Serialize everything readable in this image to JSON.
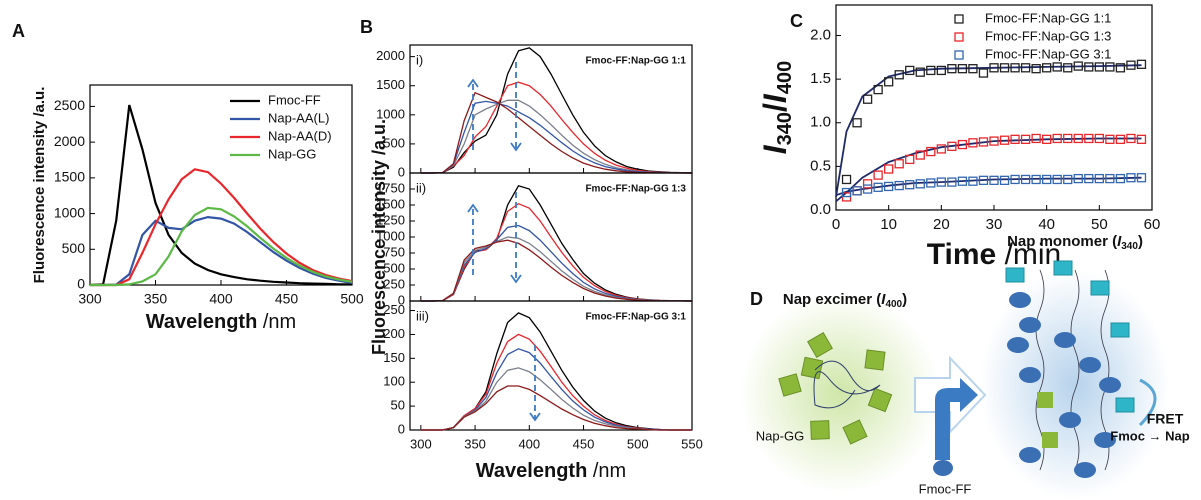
{
  "chart_data": [
    {
      "type": "line",
      "panel": "A",
      "y_label": "Fluorescence intensity /a.u.",
      "x_label": [
        "Wavelength",
        " /nm"
      ],
      "x": [
        300,
        310,
        320,
        330,
        340,
        350,
        360,
        370,
        380,
        390,
        400,
        410,
        420,
        430,
        440,
        450,
        460,
        470,
        480,
        490,
        500
      ],
      "xlim": [
        300,
        500
      ],
      "xticks": [
        300,
        350,
        400,
        450,
        500
      ],
      "ylim": [
        0,
        2800
      ],
      "yticks": [
        0,
        500,
        1000,
        1500,
        2000,
        2500
      ],
      "legend": "upper right",
      "series": [
        {
          "name": "Fmoc-FF",
          "color": "#000000",
          "values": [
            0,
            10,
            900,
            2520,
            1900,
            1150,
            700,
            450,
            300,
            210,
            150,
            110,
            80,
            60,
            45,
            35,
            25,
            20,
            15,
            10,
            8
          ]
        },
        {
          "name": "Nap-AA(L)",
          "color": "#3355a5",
          "values": [
            0,
            0,
            5,
            150,
            700,
            900,
            800,
            780,
            900,
            950,
            930,
            860,
            740,
            600,
            460,
            340,
            240,
            160,
            100,
            60,
            30
          ]
        },
        {
          "name": "Nap-AA(D)",
          "color": "#e8262b",
          "values": [
            0,
            0,
            0,
            80,
            450,
            850,
            1200,
            1480,
            1620,
            1580,
            1420,
            1220,
            1000,
            790,
            600,
            440,
            310,
            210,
            140,
            90,
            55
          ]
        },
        {
          "name": "Nap-GG",
          "color": "#5cb946",
          "values": [
            0,
            0,
            0,
            10,
            50,
            150,
            400,
            750,
            980,
            1080,
            1060,
            960,
            820,
            660,
            510,
            380,
            270,
            185,
            120,
            75,
            45
          ]
        }
      ]
    },
    {
      "type": "line",
      "panel": "B",
      "roman": "i)",
      "ratio_label": "Fmoc-FF:Nap-GG 1:1",
      "x": [
        300,
        310,
        320,
        330,
        340,
        350,
        360,
        370,
        380,
        390,
        400,
        410,
        420,
        430,
        440,
        450,
        460,
        470,
        480,
        490,
        500,
        510,
        520,
        530,
        540,
        550
      ],
      "xlim": [
        290,
        550
      ],
      "ylim": [
        0,
        2200
      ],
      "yticks": [
        0,
        500,
        1000,
        1500,
        2000
      ],
      "series": [
        {
          "color": "#000000",
          "values": [
            0,
            0,
            5,
            100,
            350,
            550,
            650,
            1000,
            1700,
            2100,
            2150,
            2000,
            1700,
            1350,
            1000,
            700,
            470,
            300,
            190,
            110,
            65,
            35,
            20,
            10,
            5,
            0
          ]
        },
        {
          "color": "#e8262b",
          "values": [
            0,
            0,
            5,
            120,
            300,
            620,
            800,
            1150,
            1500,
            1560,
            1500,
            1350,
            1150,
            920,
            700,
            500,
            340,
            220,
            135,
            80,
            45,
            25,
            12,
            6,
            3,
            0
          ]
        },
        {
          "color": "#7b7f8c",
          "values": [
            0,
            0,
            5,
            130,
            500,
            1000,
            1100,
            1180,
            1250,
            1250,
            1150,
            1000,
            830,
            650,
            480,
            340,
            230,
            150,
            90,
            55,
            30,
            16,
            8,
            4,
            2,
            0
          ]
        },
        {
          "color": "#3355a5",
          "values": [
            0,
            0,
            5,
            150,
            700,
            1200,
            1230,
            1200,
            1150,
            1050,
            950,
            820,
            670,
            520,
            380,
            265,
            175,
            110,
            68,
            40,
            22,
            12,
            6,
            3,
            1,
            0
          ]
        },
        {
          "color": "#8b1a1a",
          "values": [
            0,
            0,
            5,
            160,
            900,
            1380,
            1300,
            1220,
            1100,
            950,
            800,
            650,
            500,
            370,
            260,
            170,
            110,
            65,
            38,
            20,
            10,
            5,
            2,
            1,
            0,
            0
          ]
        }
      ]
    },
    {
      "type": "line",
      "panel_y_label": "Fluorescence intensity /a.u.",
      "roman": "ii)",
      "ratio_label": "Fmoc-FF:Nap-GG 1:3",
      "x": [
        300,
        310,
        320,
        330,
        340,
        350,
        360,
        370,
        380,
        390,
        400,
        410,
        420,
        430,
        440,
        450,
        460,
        470,
        480,
        490,
        500,
        510,
        520,
        530,
        540,
        550
      ],
      "xlim": [
        290,
        550
      ],
      "ylim": [
        0,
        2000
      ],
      "yticks": [
        0,
        250,
        500,
        750,
        1000,
        1250,
        1500,
        1750
      ],
      "series": [
        {
          "color": "#000000",
          "values": [
            0,
            0,
            5,
            100,
            500,
            780,
            800,
            950,
            1500,
            1800,
            1750,
            1500,
            1200,
            900,
            650,
            430,
            280,
            175,
            105,
            60,
            33,
            18,
            9,
            4,
            2,
            0
          ]
        },
        {
          "color": "#e8262b",
          "values": [
            0,
            0,
            5,
            100,
            520,
            770,
            800,
            980,
            1400,
            1520,
            1450,
            1250,
            1000,
            760,
            550,
            370,
            240,
            150,
            90,
            52,
            28,
            15,
            8,
            4,
            2,
            0
          ]
        },
        {
          "color": "#3355a5",
          "values": [
            0,
            0,
            5,
            110,
            560,
            760,
            820,
            960,
            1150,
            1180,
            1100,
            950,
            770,
            590,
            430,
            290,
            190,
            120,
            72,
            42,
            23,
            12,
            6,
            3,
            1,
            0
          ]
        },
        {
          "color": "#7b7f8c",
          "values": [
            0,
            0,
            5,
            115,
            600,
            790,
            840,
            930,
            1000,
            980,
            900,
            770,
            620,
            470,
            340,
            230,
            150,
            95,
            57,
            33,
            18,
            10,
            5,
            2,
            1,
            0
          ]
        },
        {
          "color": "#8b1a1a",
          "values": [
            0,
            0,
            5,
            120,
            640,
            820,
            860,
            920,
            950,
            900,
            800,
            670,
            530,
            400,
            290,
            195,
            125,
            78,
            46,
            26,
            14,
            7,
            3,
            2,
            1,
            0
          ]
        }
      ]
    },
    {
      "type": "line",
      "roman": "iii)",
      "ratio_label": "Fmoc-FF:Nap-GG 3:1",
      "x_label": [
        "Wavelength",
        " /nm"
      ],
      "x": [
        300,
        310,
        320,
        330,
        340,
        350,
        360,
        370,
        380,
        390,
        400,
        410,
        420,
        430,
        440,
        450,
        460,
        470,
        480,
        490,
        500,
        510,
        520,
        530,
        540,
        550
      ],
      "xlim": [
        290,
        550
      ],
      "xticks": [
        300,
        350,
        400,
        450,
        500,
        550
      ],
      "ylim": [
        0,
        270
      ],
      "yticks": [
        0,
        50,
        100,
        150,
        200,
        250
      ],
      "series": [
        {
          "color": "#000000",
          "values": [
            0,
            0,
            0,
            5,
            30,
            45,
            80,
            160,
            225,
            245,
            235,
            205,
            165,
            125,
            90,
            62,
            40,
            25,
            15,
            9,
            5,
            3,
            1,
            0,
            0,
            0
          ]
        },
        {
          "color": "#e8262b",
          "values": [
            0,
            0,
            0,
            5,
            30,
            45,
            75,
            140,
            185,
            200,
            190,
            165,
            133,
            100,
            72,
            50,
            32,
            20,
            12,
            7,
            4,
            2,
            1,
            0,
            0,
            0
          ]
        },
        {
          "color": "#3355a5",
          "values": [
            0,
            0,
            0,
            5,
            28,
            42,
            68,
            120,
            158,
            170,
            162,
            140,
            112,
            85,
            61,
            42,
            27,
            17,
            10,
            6,
            3,
            2,
            1,
            0,
            0,
            0
          ]
        },
        {
          "color": "#7b7f8c",
          "values": [
            0,
            0,
            0,
            5,
            28,
            40,
            60,
            100,
            125,
            130,
            122,
            105,
            85,
            64,
            46,
            31,
            20,
            13,
            8,
            5,
            3,
            1,
            0,
            0,
            0,
            0
          ]
        },
        {
          "color": "#8b1a1a",
          "values": [
            0,
            0,
            0,
            5,
            27,
            38,
            55,
            80,
            92,
            92,
            85,
            72,
            58,
            44,
            32,
            22,
            14,
            9,
            5,
            3,
            2,
            1,
            0,
            0,
            0,
            0
          ]
        }
      ]
    },
    {
      "type": "scatter",
      "panel": "C",
      "y_label": [
        "I",
        "340",
        "/",
        "I",
        "400"
      ],
      "x_label": [
        "Time",
        " /min"
      ],
      "x": [
        2,
        4,
        6,
        8,
        10,
        12,
        14,
        16,
        18,
        20,
        22,
        24,
        26,
        28,
        30,
        32,
        34,
        36,
        38,
        40,
        42,
        44,
        46,
        48,
        50,
        52,
        54,
        56,
        58
      ],
      "xlim": [
        0,
        60
      ],
      "xticks": [
        0,
        10,
        20,
        30,
        40,
        50,
        60
      ],
      "ylim": [
        0,
        2.35
      ],
      "yticks": [
        {
          "value": 0,
          "label": "0.0"
        },
        0.5,
        {
          "value": 1,
          "label": "1.0"
        },
        1.5,
        {
          "value": 2,
          "label": "2.0"
        }
      ],
      "legend": "upper right",
      "series": [
        {
          "name": "Fmoc-FF:Nap-GG 1:1",
          "color": "#222222",
          "values": [
            0.35,
            1.0,
            1.27,
            1.38,
            1.47,
            1.55,
            1.6,
            1.58,
            1.6,
            1.6,
            1.62,
            1.62,
            1.62,
            1.57,
            1.63,
            1.63,
            1.63,
            1.63,
            1.62,
            1.63,
            1.64,
            1.63,
            1.65,
            1.64,
            1.64,
            1.64,
            1.63,
            1.66,
            1.67
          ]
        },
        {
          "name": "Fmoc-FF:Nap-GG 1:3",
          "color": "#e8262b",
          "values": [
            0.15,
            0.22,
            0.3,
            0.4,
            0.47,
            0.53,
            0.58,
            0.63,
            0.67,
            0.7,
            0.73,
            0.75,
            0.77,
            0.78,
            0.79,
            0.8,
            0.81,
            0.81,
            0.82,
            0.81,
            0.82,
            0.82,
            0.82,
            0.82,
            0.82,
            0.81,
            0.81,
            0.82,
            0.81
          ]
        },
        {
          "name": "Fmoc-FF:Nap-GG 3:1",
          "color": "#3366b0",
          "values": [
            0.2,
            0.22,
            0.24,
            0.26,
            0.27,
            0.28,
            0.29,
            0.3,
            0.31,
            0.32,
            0.32,
            0.33,
            0.33,
            0.34,
            0.34,
            0.34,
            0.35,
            0.35,
            0.35,
            0.35,
            0.35,
            0.35,
            0.36,
            0.36,
            0.36,
            0.36,
            0.36,
            0.37,
            0.37
          ]
        }
      ],
      "fits": [
        {
          "color": "#1f2a6b",
          "x": [
            0,
            2,
            5,
            10,
            15,
            20,
            30,
            40,
            50,
            58
          ],
          "values": [
            0.15,
            0.9,
            1.3,
            1.53,
            1.6,
            1.62,
            1.63,
            1.64,
            1.65,
            1.66
          ]
        },
        {
          "color": "#1f2a6b",
          "x": [
            0,
            2,
            5,
            10,
            15,
            20,
            30,
            40,
            50,
            58
          ],
          "values": [
            0.1,
            0.2,
            0.37,
            0.55,
            0.65,
            0.72,
            0.79,
            0.81,
            0.82,
            0.82
          ]
        },
        {
          "color": "#1f2a6b",
          "x": [
            0,
            2,
            5,
            10,
            15,
            20,
            30,
            40,
            50,
            58
          ],
          "values": [
            0.17,
            0.21,
            0.24,
            0.28,
            0.31,
            0.32,
            0.35,
            0.36,
            0.36,
            0.37
          ]
        }
      ]
    }
  ],
  "diagram": {
    "panel": "D",
    "excimer_label": [
      "Nap excimer (",
      "I",
      "400",
      ")"
    ],
    "monomer_label": [
      "Nap monomer (",
      "I",
      "340",
      ")"
    ],
    "nap_gg": "Nap-GG",
    "fmoc_ff": "Fmoc-FF",
    "fret": "FRET",
    "fret_direction": "Fmoc → Nap"
  }
}
